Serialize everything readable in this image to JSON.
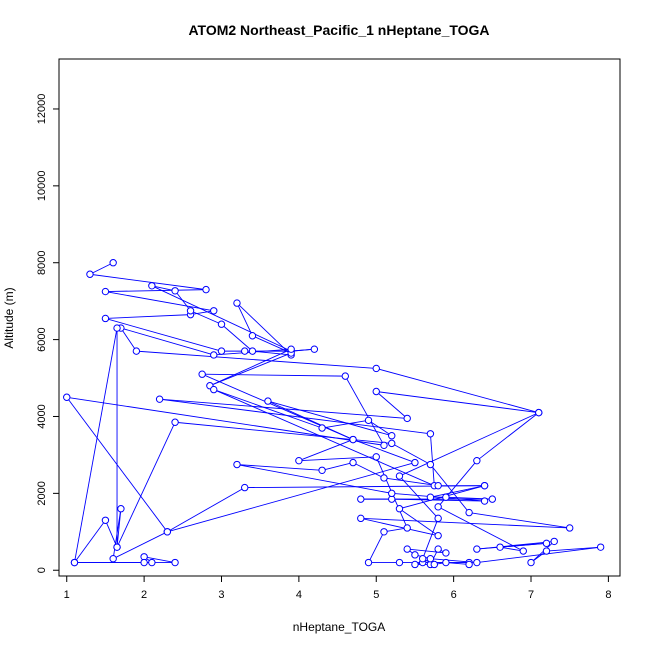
{
  "chart_data": {
    "type": "line",
    "title": "ATOM2 Northeast_Pacific_1 nHeptane_TOGA",
    "xlabel": "nHeptane_TOGA",
    "ylabel": "Altitude (m)",
    "xlim": [
      0.9,
      8.15
    ],
    "ylim": [
      -150,
      13300
    ],
    "x_ticks": [
      1,
      2,
      3,
      4,
      5,
      6,
      7,
      8
    ],
    "y_ticks": [
      0,
      2000,
      4000,
      6000,
      8000,
      10000,
      12000
    ],
    "grid": false,
    "legend": "none",
    "series_color": "#0000ff",
    "series": [
      {
        "points": [
          [
            1.6,
            8000
          ],
          [
            1.3,
            7700
          ],
          [
            2.8,
            7300
          ],
          [
            1.5,
            7250
          ],
          [
            2.9,
            6750
          ],
          [
            2.6,
            6650
          ],
          [
            1.5,
            6550
          ],
          [
            3.0,
            5700
          ],
          [
            3.3,
            5700
          ],
          [
            3.9,
            5700
          ],
          [
            4.2,
            5750
          ],
          [
            3.9,
            5700
          ],
          [
            2.1,
            7400
          ],
          [
            2.4,
            7270
          ],
          [
            2.6,
            6750
          ],
          [
            3.0,
            6400
          ],
          [
            3.4,
            5700
          ],
          [
            3.9,
            5600
          ],
          [
            3.2,
            6950
          ],
          [
            3.4,
            6100
          ],
          [
            3.9,
            5650
          ],
          [
            2.85,
            4800
          ],
          [
            3.9,
            5750
          ],
          [
            2.9,
            5600
          ],
          [
            1.7,
            6300
          ],
          [
            1.9,
            5700
          ],
          [
            5.0,
            5250
          ],
          [
            7.1,
            4100
          ],
          [
            5.0,
            4650
          ],
          [
            5.4,
            3950
          ],
          [
            2.2,
            4450
          ],
          [
            5.7,
            3550
          ],
          [
            5.75,
            2200
          ],
          [
            2.9,
            4700
          ],
          [
            4.3,
            3700
          ],
          [
            4.9,
            3900
          ],
          [
            5.2,
            3500
          ],
          [
            3.6,
            4400
          ],
          [
            4.7,
            3400
          ],
          [
            2.75,
            5100
          ],
          [
            4.6,
            5050
          ],
          [
            5.1,
            3250
          ],
          [
            1.0,
            4500
          ],
          [
            2.3,
            1000
          ],
          [
            1.6,
            300
          ],
          [
            1.7,
            1600
          ],
          [
            1.65,
            600
          ],
          [
            1.5,
            1300
          ],
          [
            1.1,
            200
          ],
          [
            2.1,
            200
          ],
          [
            2.0,
            350
          ],
          [
            2.4,
            200
          ],
          [
            2.0,
            200
          ],
          [
            1.1,
            200
          ],
          [
            1.65,
            6300
          ],
          [
            1.65,
            600
          ],
          [
            2.4,
            3850
          ],
          [
            5.2,
            3300
          ],
          [
            5.7,
            2750
          ],
          [
            6.2,
            1500
          ],
          [
            7.5,
            1100
          ],
          [
            4.8,
            1350
          ],
          [
            5.8,
            900
          ],
          [
            5.3,
            1600
          ],
          [
            6.4,
            2200
          ],
          [
            5.7,
            1900
          ],
          [
            5.9,
            1900
          ],
          [
            6.5,
            1850
          ],
          [
            4.8,
            1850
          ],
          [
            5.2,
            1850
          ],
          [
            6.4,
            1800
          ],
          [
            5.2,
            2000
          ],
          [
            3.2,
            2750
          ],
          [
            4.3,
            2600
          ],
          [
            4.7,
            2800
          ],
          [
            5.1,
            2400
          ],
          [
            5.8,
            2200
          ],
          [
            6.4,
            2200
          ],
          [
            3.3,
            2150
          ],
          [
            2.3,
            1000
          ],
          [
            5.5,
            2800
          ],
          [
            4.7,
            3400
          ],
          [
            4.0,
            2850
          ],
          [
            5.0,
            2950
          ],
          [
            5.4,
            1100
          ],
          [
            5.1,
            1000
          ],
          [
            4.9,
            200
          ],
          [
            5.3,
            200
          ],
          [
            6.2,
            200
          ],
          [
            5.6,
            200
          ],
          [
            5.5,
            150
          ],
          [
            5.7,
            150
          ],
          [
            5.8,
            550
          ],
          [
            5.9,
            450
          ],
          [
            5.4,
            550
          ],
          [
            5.5,
            400
          ],
          [
            5.7,
            300
          ],
          [
            6.3,
            200
          ],
          [
            7.9,
            600
          ],
          [
            7.2,
            500
          ],
          [
            7.0,
            200
          ],
          [
            7.3,
            750
          ],
          [
            6.3,
            550
          ],
          [
            7.2,
            700
          ],
          [
            6.6,
            600
          ],
          [
            6.9,
            500
          ],
          [
            5.8,
            1650
          ],
          [
            6.3,
            2850
          ],
          [
            7.1,
            4100
          ],
          [
            5.3,
            2450
          ],
          [
            5.8,
            1350
          ],
          [
            5.6,
            300
          ],
          [
            5.75,
            150
          ],
          [
            5.9,
            200
          ],
          [
            6.2,
            150
          ]
        ]
      }
    ]
  }
}
